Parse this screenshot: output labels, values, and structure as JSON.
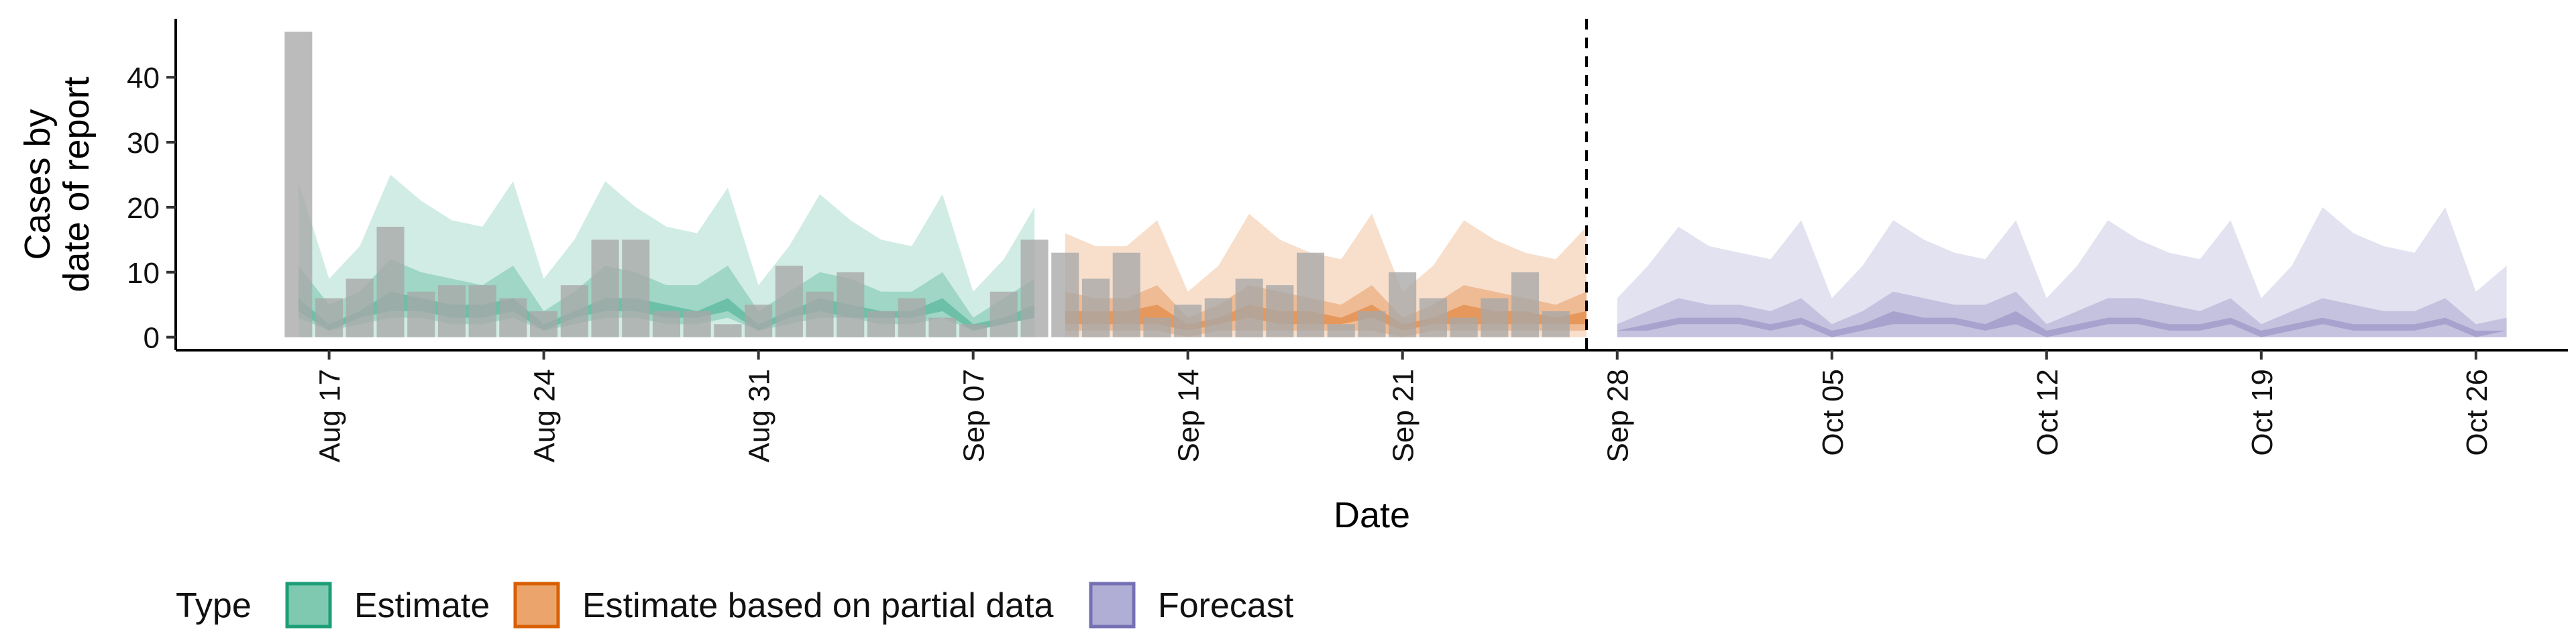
{
  "chart_data": {
    "type": "bar+area",
    "xlabel": "Date",
    "ylabel_lines": [
      "Cases by",
      "date of report"
    ],
    "ylim": [
      -2,
      49
    ],
    "y_ticks": [
      0,
      10,
      20,
      30,
      40
    ],
    "x_ticks": [
      {
        "date": "2020-08-17",
        "label": "Aug 17"
      },
      {
        "date": "2020-08-24",
        "label": "Aug 24"
      },
      {
        "date": "2020-08-31",
        "label": "Aug 31"
      },
      {
        "date": "2020-09-07",
        "label": "Sep 07"
      },
      {
        "date": "2020-09-14",
        "label": "Sep 14"
      },
      {
        "date": "2020-09-21",
        "label": "Sep 21"
      },
      {
        "date": "2020-09-28",
        "label": "Sep 28"
      },
      {
        "date": "2020-10-05",
        "label": "Oct 05"
      },
      {
        "date": "2020-10-12",
        "label": "Oct 12"
      },
      {
        "date": "2020-10-19",
        "label": "Oct 19"
      },
      {
        "date": "2020-10-26",
        "label": "Oct 26"
      }
    ],
    "x_range": [
      "2020-08-12",
      "2020-10-29"
    ],
    "vline_date": "2020-09-27",
    "grid": false,
    "legend": {
      "title": "Type",
      "position": "bottom",
      "entries": [
        {
          "label": "Estimate",
          "fill": "#7fc9b0",
          "stroke": "#1b9e77"
        },
        {
          "label": "Estimate based on partial data",
          "fill": "#eba56c",
          "stroke": "#d95f02"
        },
        {
          "label": "Forecast",
          "fill": "#b1aed5",
          "stroke": "#7570b3"
        }
      ]
    },
    "reported_cases": {
      "color": "#a8a8a8",
      "start_date": "2020-08-16",
      "values": [
        47,
        6,
        9,
        17,
        7,
        8,
        8,
        6,
        4,
        8,
        15,
        15,
        4,
        4,
        2,
        5,
        11,
        7,
        10,
        4,
        6,
        3,
        2,
        7,
        15,
        13,
        9,
        13,
        3,
        5,
        6,
        9,
        8,
        13,
        2,
        4,
        10,
        6,
        3,
        6,
        10,
        4
      ]
    },
    "series": [
      {
        "name": "Estimate",
        "color": "#1b9e77",
        "start_date": "2020-08-16",
        "outer_low": [
          0,
          0,
          0,
          0,
          0,
          0,
          0,
          0,
          0,
          0,
          0,
          0,
          0,
          0,
          0,
          0,
          0,
          0,
          0,
          0,
          0,
          0,
          0,
          0,
          0
        ],
        "outer_high": [
          24,
          9,
          14,
          25,
          21,
          18,
          17,
          24,
          9,
          15,
          24,
          20,
          17,
          16,
          23,
          8,
          14,
          22,
          18,
          15,
          14,
          22,
          7,
          12,
          20
        ],
        "mid_low": [
          3,
          1,
          2,
          3,
          3,
          2,
          2,
          3,
          1,
          2,
          3,
          3,
          2,
          2,
          3,
          1,
          2,
          3,
          3,
          2,
          2,
          3,
          1,
          2,
          3
        ],
        "mid_high": [
          11,
          5,
          7,
          12,
          10,
          9,
          8,
          11,
          4,
          7,
          11,
          10,
          8,
          8,
          11,
          4,
          7,
          10,
          9,
          7,
          7,
          10,
          3,
          6,
          9
        ],
        "inner_low": [
          4,
          1,
          3,
          4,
          4,
          3,
          3,
          4,
          1,
          3,
          4,
          4,
          3,
          3,
          4,
          1,
          3,
          4,
          3,
          3,
          3,
          4,
          1,
          2,
          3
        ],
        "inner_high": [
          6,
          2,
          4,
          7,
          6,
          5,
          5,
          6,
          2,
          4,
          6,
          6,
          5,
          4,
          6,
          2,
          4,
          6,
          5,
          4,
          4,
          6,
          2,
          3,
          5
        ]
      },
      {
        "name": "Estimate based on partial data",
        "color": "#d95f02",
        "start_date": "2020-09-10",
        "outer_low": [
          0,
          0,
          0,
          0,
          0,
          0,
          0,
          0,
          0,
          0,
          0,
          0,
          0,
          0,
          0,
          0,
          0,
          0
        ],
        "outer_high": [
          16,
          14,
          14,
          18,
          7,
          11,
          19,
          15,
          13,
          12,
          19,
          7,
          11,
          18,
          15,
          13,
          12,
          17
        ],
        "mid_low": [
          1,
          1,
          1,
          1,
          0,
          1,
          1,
          1,
          1,
          1,
          1,
          0,
          1,
          1,
          1,
          1,
          1,
          1
        ],
        "mid_high": [
          7,
          6,
          6,
          8,
          3,
          5,
          8,
          7,
          6,
          5,
          8,
          3,
          5,
          8,
          7,
          6,
          5,
          7
        ],
        "inner_low": [
          2,
          2,
          2,
          2,
          1,
          2,
          3,
          2,
          2,
          2,
          3,
          1,
          2,
          2,
          2,
          2,
          2,
          2
        ],
        "inner_high": [
          4,
          4,
          4,
          5,
          2,
          3,
          5,
          4,
          4,
          3,
          5,
          2,
          3,
          5,
          4,
          4,
          3,
          4
        ]
      },
      {
        "name": "Forecast",
        "color": "#7570b3",
        "start_date": "2020-09-28",
        "outer_low": [
          0,
          0,
          0,
          0,
          0,
          0,
          0,
          0,
          0,
          0,
          0,
          0,
          0,
          0,
          0,
          0,
          0,
          0,
          0,
          0,
          0,
          0,
          0,
          0,
          0,
          0,
          0,
          0,
          0,
          0
        ],
        "outer_high": [
          6,
          11,
          17,
          14,
          13,
          12,
          18,
          6,
          11,
          18,
          15,
          13,
          12,
          18,
          6,
          11,
          18,
          15,
          13,
          12,
          18,
          6,
          11,
          20,
          16,
          14,
          13,
          20,
          7,
          11
        ],
        "mid_low": [
          0,
          0,
          0,
          0,
          0,
          0,
          0,
          0,
          0,
          0,
          0,
          0,
          0,
          0,
          0,
          0,
          0,
          0,
          0,
          0,
          0,
          0,
          0,
          0,
          0,
          0,
          0,
          0,
          0,
          0
        ],
        "mid_high": [
          2,
          4,
          6,
          5,
          5,
          4,
          6,
          2,
          4,
          7,
          6,
          5,
          5,
          7,
          2,
          4,
          6,
          6,
          5,
          4,
          6,
          2,
          4,
          6,
          5,
          4,
          4,
          6,
          2,
          3
        ],
        "inner_low": [
          1,
          1,
          2,
          2,
          2,
          1,
          2,
          0,
          1,
          2,
          2,
          2,
          1,
          2,
          0,
          1,
          2,
          2,
          1,
          1,
          2,
          0,
          1,
          2,
          1,
          1,
          1,
          2,
          0,
          1
        ],
        "inner_high": [
          1,
          2,
          3,
          3,
          3,
          2,
          3,
          1,
          2,
          4,
          3,
          3,
          2,
          4,
          1,
          2,
          3,
          3,
          2,
          2,
          3,
          1,
          2,
          3,
          2,
          2,
          2,
          3,
          1,
          1
        ]
      }
    ]
  }
}
